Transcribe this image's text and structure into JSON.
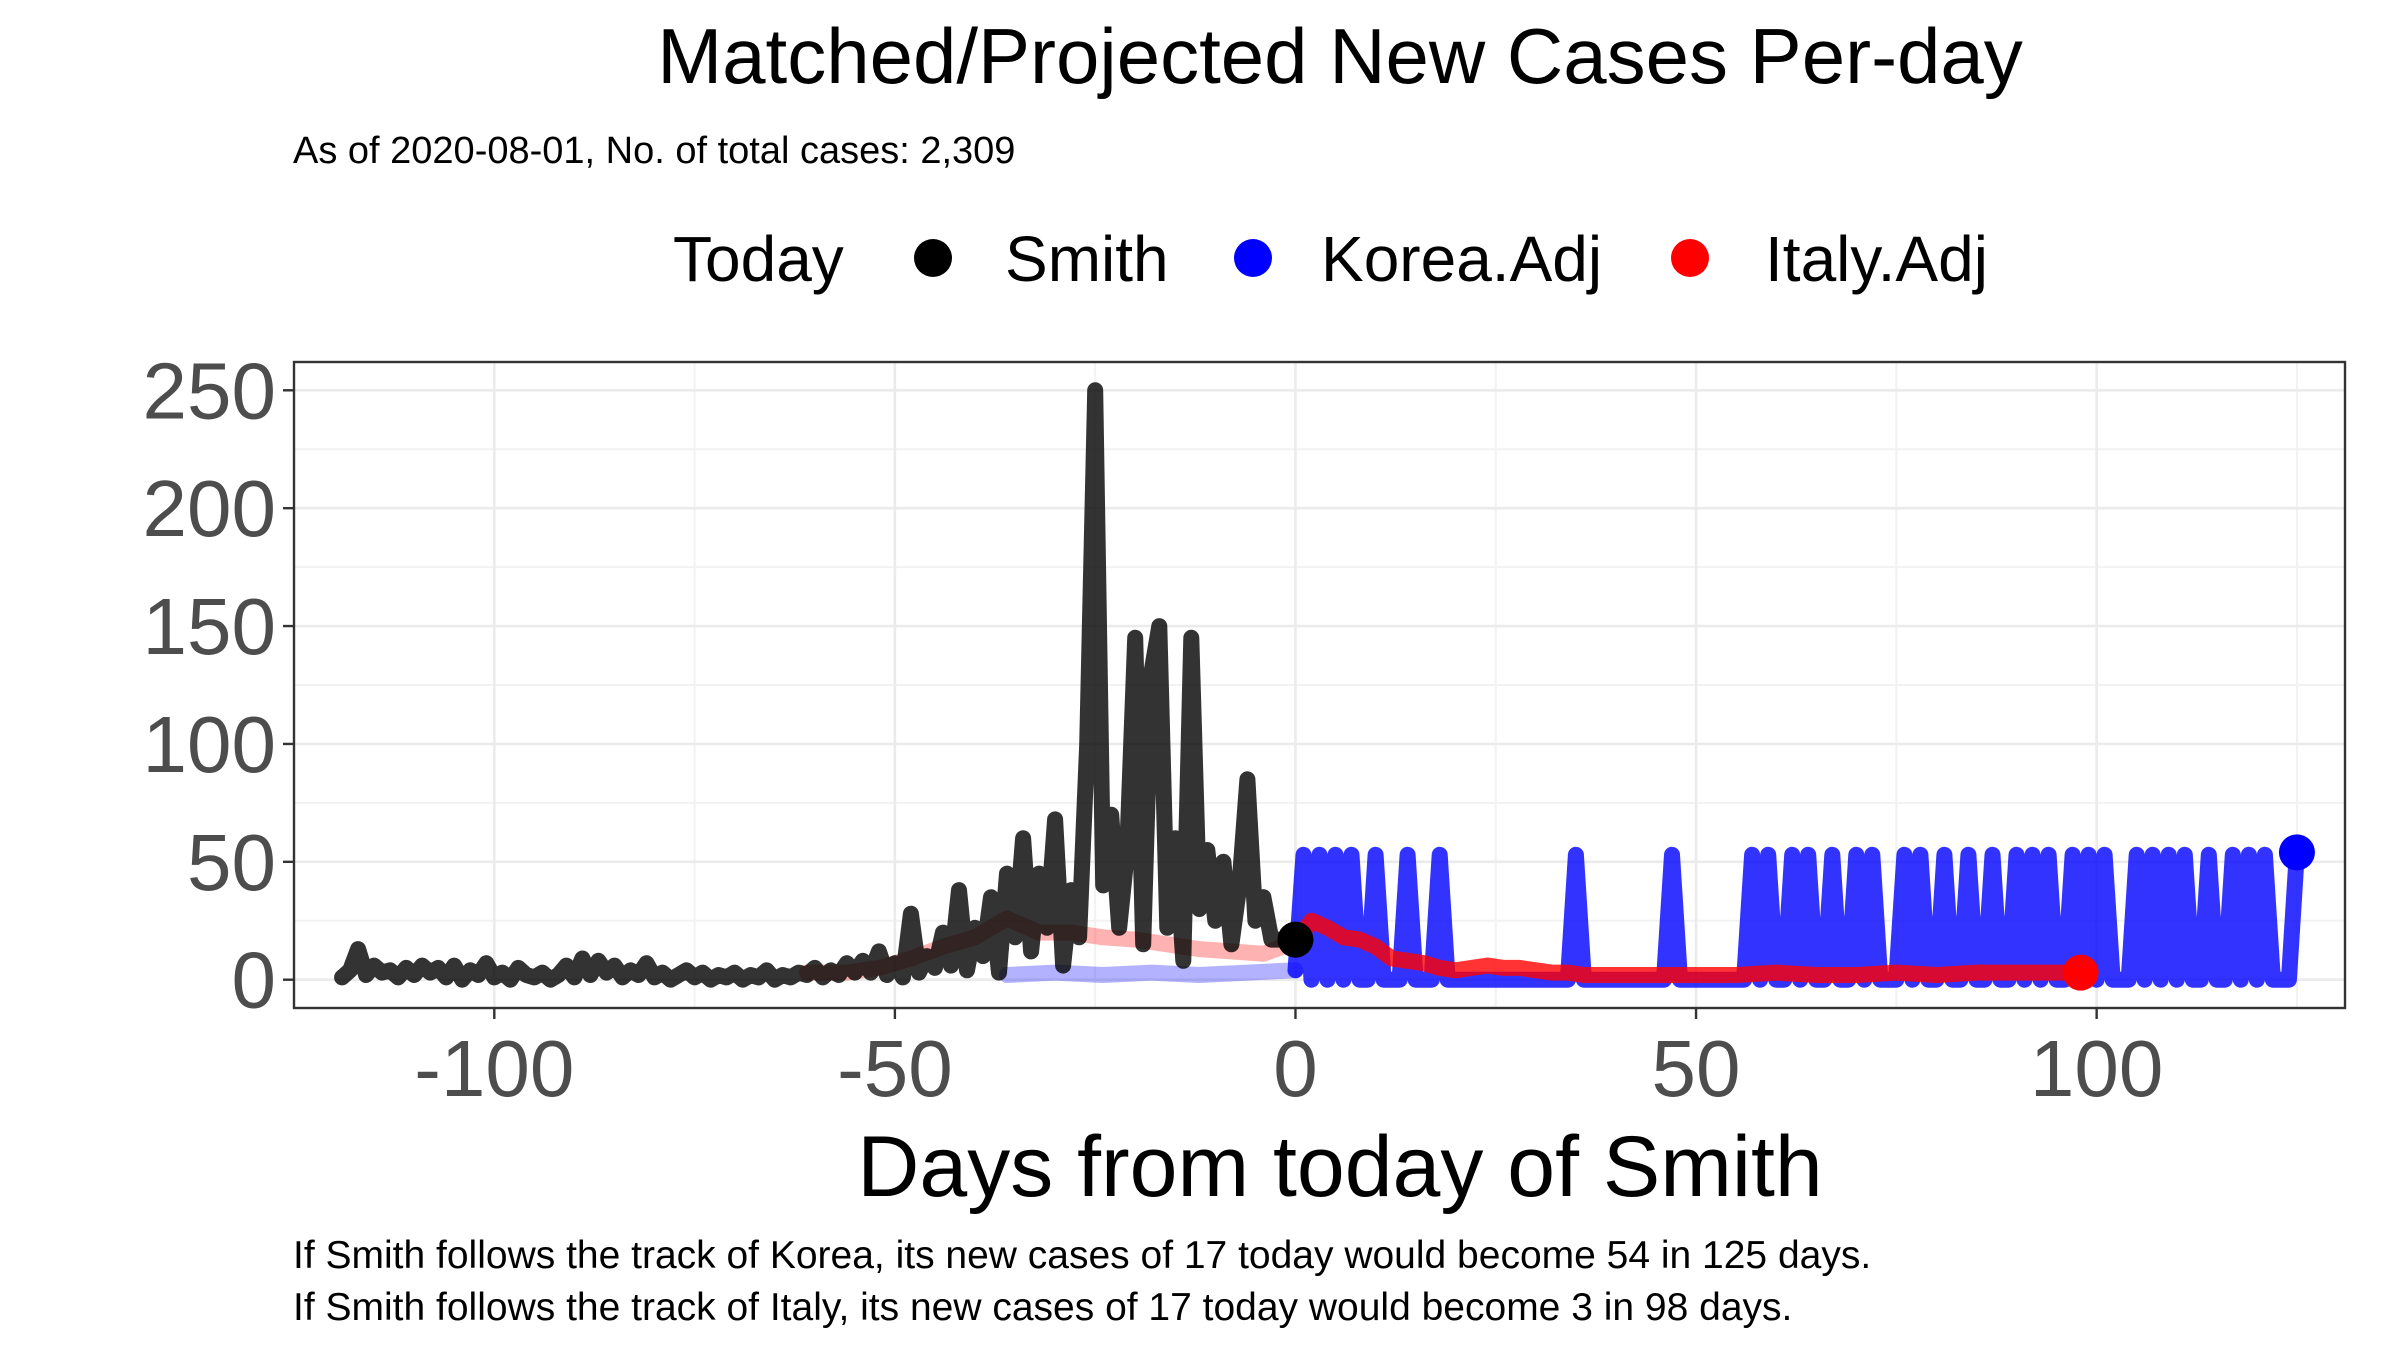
{
  "chart_data": {
    "type": "line",
    "title": "Matched/Projected New Cases Per-day",
    "subtitle": "As of 2020-08-01, No. of total cases: 2,309",
    "xlabel": "Days from today of Smith",
    "ylabel": "",
    "xlim": [
      -125,
      131
    ],
    "ylim": [
      -12,
      262
    ],
    "x_ticks": [
      -100,
      -50,
      0,
      50,
      100
    ],
    "y_ticks": [
      0,
      50,
      100,
      150,
      200,
      250
    ],
    "grid": true,
    "legend": {
      "position": "top",
      "title": "Today",
      "entries": [
        {
          "label": "Smith",
          "color": "#000000"
        },
        {
          "label": "Korea.Adj",
          "color": "#0000ff"
        },
        {
          "label": "Italy.Adj",
          "color": "#ff0000"
        }
      ]
    },
    "series": [
      {
        "name": "Smith",
        "color": "#000000",
        "x": [
          -119,
          -118,
          -117,
          -116,
          -115,
          -114,
          -113,
          -112,
          -111,
          -110,
          -109,
          -108,
          -107,
          -106,
          -105,
          -104,
          -103,
          -102,
          -101,
          -100,
          -99,
          -98,
          -97,
          -96,
          -95,
          -94,
          -93,
          -92,
          -91,
          -90,
          -89,
          -88,
          -87,
          -86,
          -85,
          -84,
          -83,
          -82,
          -81,
          -80,
          -79,
          -78,
          -77,
          -76,
          -75,
          -74,
          -73,
          -72,
          -71,
          -70,
          -69,
          -68,
          -67,
          -66,
          -65,
          -64,
          -63,
          -62,
          -61,
          -60,
          -59,
          -58,
          -57,
          -56,
          -55,
          -54,
          -53,
          -52,
          -51,
          -50,
          -49,
          -48,
          -47,
          -46,
          -45,
          -44,
          -43,
          -42,
          -41,
          -40,
          -39,
          -38,
          -37,
          -36,
          -35,
          -34,
          -33,
          -32,
          -31,
          -30,
          -29,
          -28,
          -27,
          -26,
          -25,
          -24,
          -23,
          -22,
          -21,
          -20,
          -19,
          -18,
          -17,
          -16,
          -15,
          -14,
          -13,
          -12,
          -11,
          -10,
          -9,
          -8,
          -7,
          -6,
          -5,
          -4,
          -3,
          -2,
          -1,
          0
        ],
        "y": [
          1,
          4,
          13,
          2,
          6,
          3,
          4,
          1,
          5,
          2,
          6,
          3,
          5,
          1,
          6,
          0,
          4,
          2,
          7,
          1,
          3,
          0,
          5,
          2,
          1,
          3,
          0,
          2,
          6,
          1,
          9,
          2,
          8,
          3,
          6,
          1,
          4,
          2,
          7,
          1,
          3,
          0,
          2,
          4,
          1,
          3,
          0,
          2,
          1,
          3,
          0,
          2,
          1,
          4,
          0,
          2,
          1,
          3,
          2,
          5,
          1,
          4,
          2,
          7,
          3,
          8,
          3,
          12,
          2,
          7,
          1,
          28,
          3,
          10,
          5,
          20,
          6,
          38,
          4,
          22,
          10,
          35,
          3,
          45,
          18,
          60,
          12,
          45,
          22,
          68,
          6,
          38,
          18,
          100,
          250,
          40,
          70,
          22,
          55,
          145,
          15,
          130,
          150,
          22,
          60,
          8,
          145,
          30,
          55,
          25,
          50,
          15,
          40,
          85,
          25,
          35,
          17,
          17,
          17,
          17
        ]
      },
      {
        "name": "Korea.Adj",
        "color": "#0000ff",
        "x": [
          -36,
          -30,
          -24,
          -18,
          -12,
          -6,
          0,
          1,
          2,
          3,
          4,
          5,
          6,
          7,
          8,
          9,
          10,
          11,
          12,
          13,
          14,
          15,
          16,
          17,
          18,
          19,
          20,
          22,
          24,
          26,
          28,
          30,
          32,
          34,
          35,
          36,
          38,
          40,
          42,
          44,
          46,
          47,
          48,
          50,
          52,
          54,
          56,
          57,
          58,
          59,
          60,
          61,
          62,
          63,
          64,
          65,
          66,
          67,
          68,
          69,
          70,
          71,
          72,
          73,
          74,
          75,
          76,
          77,
          78,
          79,
          80,
          81,
          82,
          83,
          84,
          85,
          86,
          87,
          88,
          89,
          90,
          91,
          92,
          93,
          94,
          95,
          96,
          97,
          98,
          99,
          100,
          101,
          102,
          103,
          104,
          105,
          106,
          107,
          108,
          109,
          110,
          111,
          112,
          113,
          114,
          115,
          116,
          117,
          118,
          119,
          120,
          121,
          122,
          123,
          124,
          125
        ],
        "y": [
          2,
          3,
          2,
          3,
          2,
          3,
          4,
          53,
          0,
          53,
          0,
          53,
          0,
          53,
          0,
          0,
          53,
          0,
          0,
          0,
          53,
          0,
          0,
          0,
          53,
          0,
          0,
          0,
          0,
          0,
          0,
          0,
          0,
          0,
          53,
          0,
          0,
          0,
          0,
          0,
          0,
          53,
          0,
          0,
          0,
          0,
          0,
          53,
          0,
          53,
          0,
          0,
          53,
          0,
          53,
          0,
          0,
          53,
          0,
          0,
          53,
          0,
          53,
          0,
          0,
          0,
          53,
          0,
          53,
          0,
          0,
          53,
          0,
          0,
          53,
          0,
          0,
          53,
          0,
          0,
          53,
          0,
          53,
          0,
          53,
          0,
          0,
          53,
          0,
          53,
          0,
          53,
          0,
          0,
          0,
          53,
          0,
          53,
          0,
          53,
          0,
          53,
          0,
          0,
          53,
          0,
          0,
          53,
          0,
          53,
          0,
          53,
          0,
          0,
          0,
          54
        ]
      },
      {
        "name": "Italy.Adj",
        "color": "#ff0000",
        "x": [
          -61,
          -56,
          -52,
          -48,
          -44,
          -40,
          -36,
          -32,
          -28,
          -24,
          -20,
          -16,
          -12,
          -8,
          -4,
          0,
          2,
          4,
          6,
          8,
          10,
          12,
          14,
          16,
          18,
          20,
          22,
          24,
          26,
          28,
          30,
          32,
          34,
          36,
          38,
          40,
          45,
          50,
          55,
          60,
          65,
          70,
          75,
          80,
          85,
          90,
          95,
          98
        ],
        "y": [
          3,
          3,
          5,
          9,
          14,
          18,
          26,
          20,
          20,
          18,
          17,
          15,
          13,
          12,
          11,
          16,
          25,
          22,
          18,
          17,
          14,
          9,
          8,
          7,
          5,
          4,
          5,
          6,
          5,
          5,
          4,
          3,
          3,
          2,
          2,
          2,
          2,
          2,
          2,
          3,
          2,
          2,
          3,
          2,
          3,
          3,
          3,
          3
        ]
      }
    ],
    "annotations": [
      "If Smith follows the track of Korea, its new cases of 17 today would become 54 in 125 days.",
      "If Smith follows the track of Italy, its new cases of 17 today would become 3 in 98 days."
    ]
  }
}
